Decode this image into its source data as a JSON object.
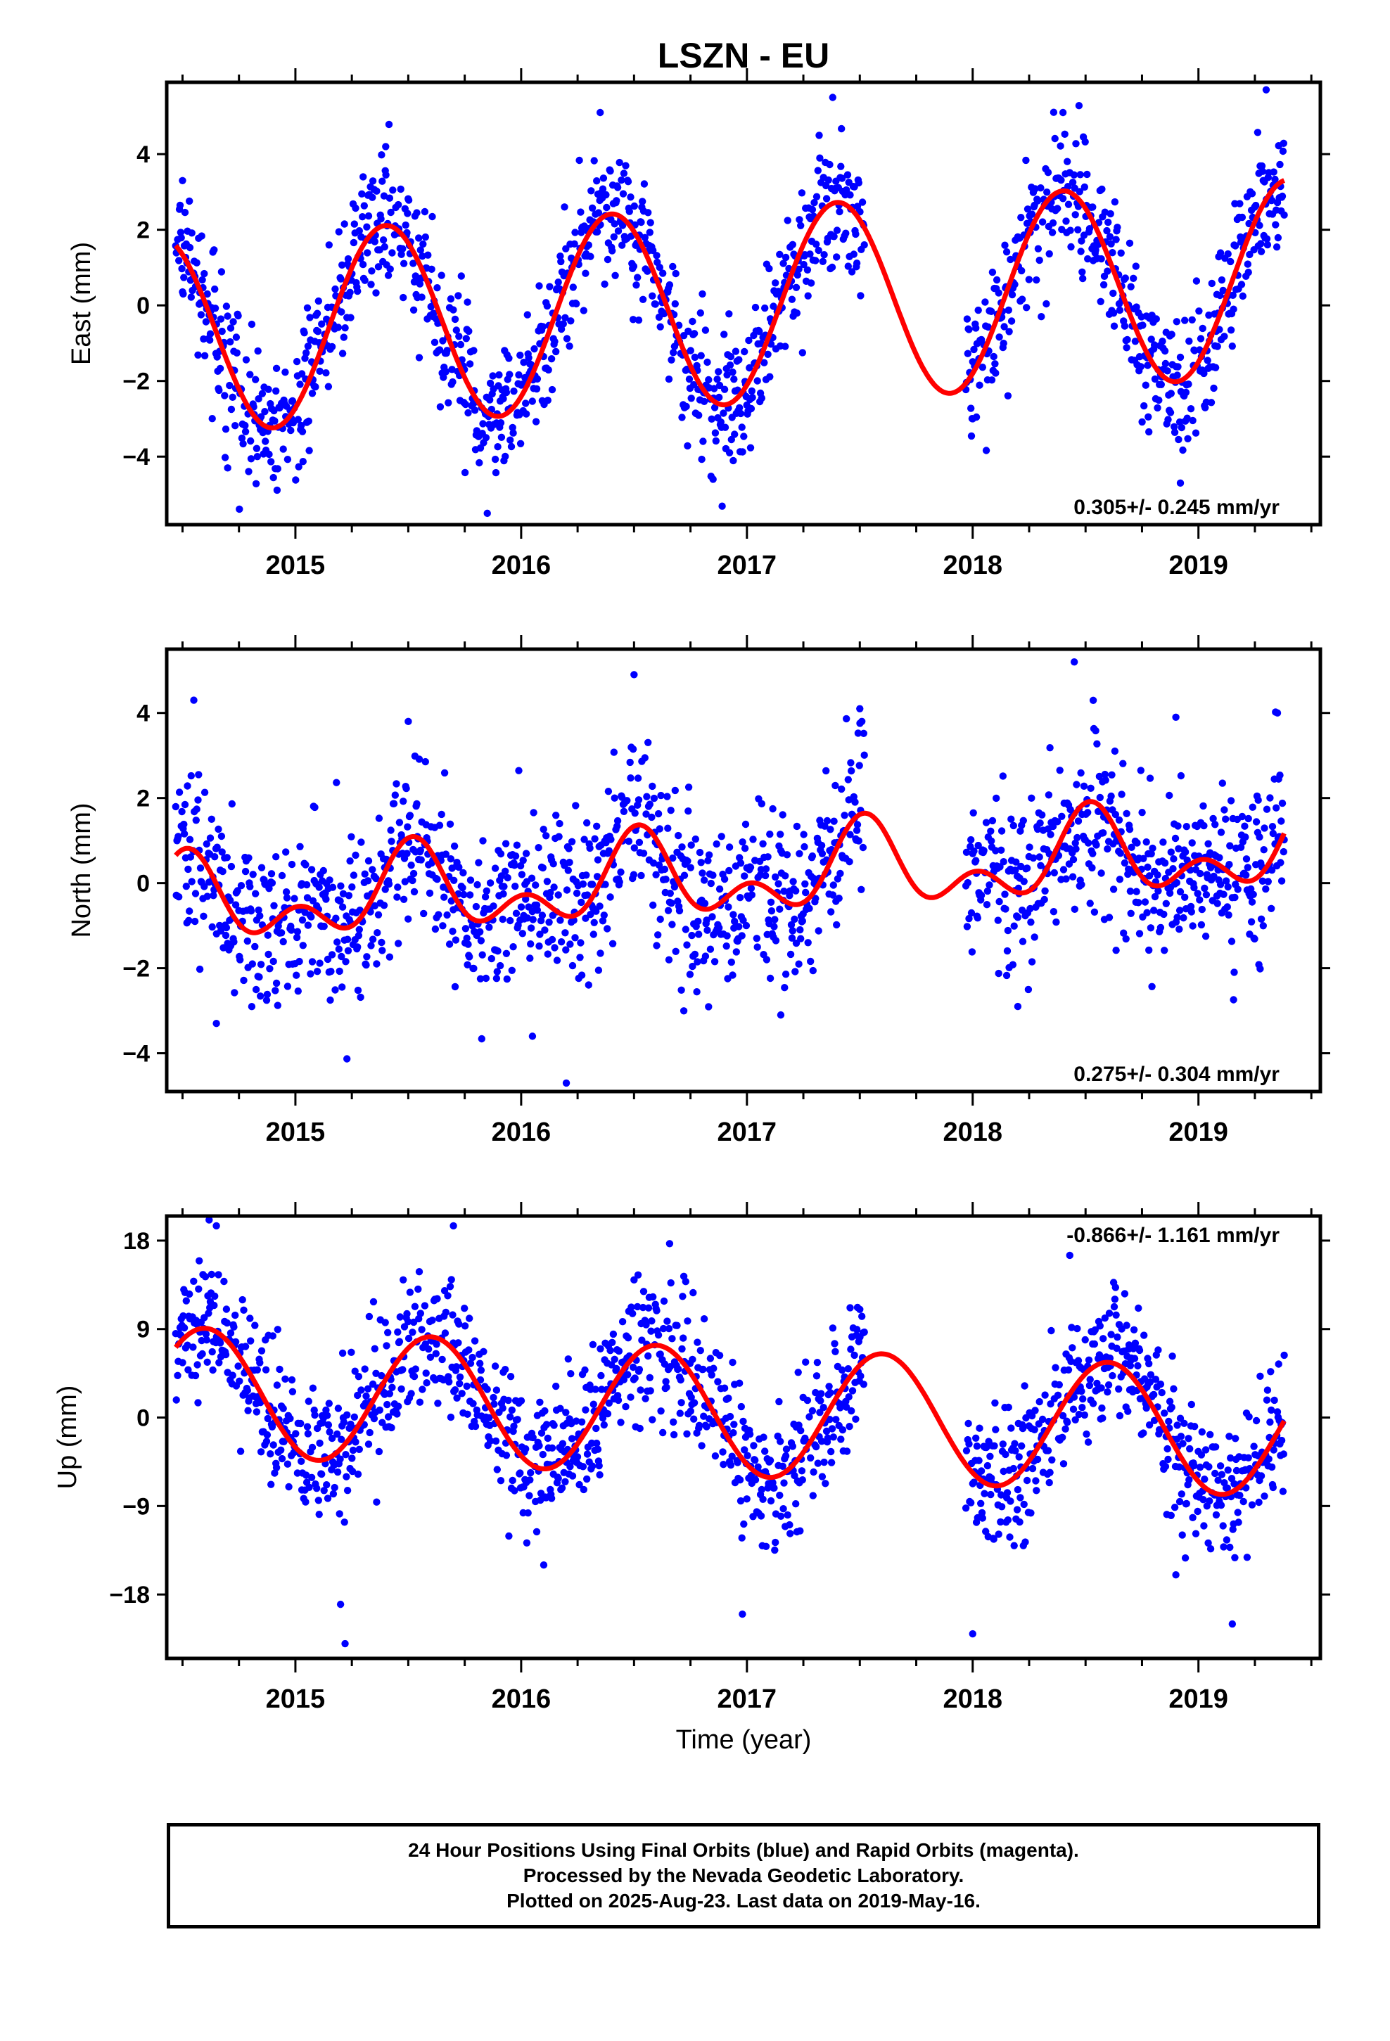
{
  "title": "LSZN - EU",
  "xlabel": "Time (year)",
  "x_tick_labels": [
    "2015",
    "2016",
    "2017",
    "2018",
    "2019"
  ],
  "footer": {
    "line1": "24 Hour Positions Using Final Orbits (blue) and Rapid Orbits (magenta).",
    "line2": "Processed by the Nevada Geodetic Laboratory.",
    "line3": "Plotted on 2025-Aug-23. Last data on 2019-May-16."
  },
  "colors": {
    "points": "#0000ff",
    "model": "#ff0000",
    "axes": "#000000"
  },
  "chart_data": [
    {
      "type": "scatter",
      "ylabel": "East (mm)",
      "rate_label": "0.305+/- 0.245 mm/yr",
      "xlim": [
        2014.43,
        2019.54
      ],
      "ylim": [
        -5.8,
        5.9
      ],
      "y_ticks": [
        -4,
        -2,
        0,
        2,
        4
      ],
      "y_tick_labels": [
        "−4",
        "−2",
        "0",
        "2",
        "4"
      ],
      "fit": {
        "trend_mm_per_yr": 0.305,
        "annual_amp": 2.6,
        "annual_peak": 0.4,
        "semi_amp": 0.0,
        "semi_peak": 0.0,
        "offset": 0.0,
        "ref_year": 2017.0
      },
      "noise_sd": 0.9,
      "observation_spans": [
        [
          2014.47,
          2017.52
        ],
        [
          2017.97,
          2019.38
        ]
      ],
      "series": [
        {
          "name": "24 Hour Positions (final orbits)",
          "color": "#0000ff",
          "sample_points": [
            {
              "x": 2014.5,
              "y": 3.3
            },
            {
              "x": 2014.7,
              "y": -4.3
            },
            {
              "x": 2015.3,
              "y": 3.4
            },
            {
              "x": 2015.4,
              "y": 4.2
            },
            {
              "x": 2015.85,
              "y": -5.5
            },
            {
              "x": 2016.35,
              "y": 5.1
            },
            {
              "x": 2016.85,
              "y": -4.6
            },
            {
              "x": 2017.38,
              "y": 5.5
            },
            {
              "x": 2018.0,
              "y": -3.0
            },
            {
              "x": 2018.4,
              "y": 5.1
            },
            {
              "x": 2018.92,
              "y": -4.7
            },
            {
              "x": 2019.3,
              "y": 5.7
            }
          ]
        }
      ]
    },
    {
      "type": "scatter",
      "ylabel": "North (mm)",
      "rate_label": "0.275+/- 0.304 mm/yr",
      "xlim": [
        2014.43,
        2019.54
      ],
      "ylim": [
        -4.9,
        5.5
      ],
      "y_ticks": [
        -4,
        -2,
        0,
        2,
        4
      ],
      "y_tick_labels": [
        "−4",
        "−2",
        "0",
        "2",
        "4"
      ],
      "fit": {
        "trend_mm_per_yr": 0.275,
        "annual_amp": 0.75,
        "annual_peak": 0.52,
        "semi_amp": 0.6,
        "semi_peak": 0.02,
        "offset": 0.15,
        "ref_year": 2017.0
      },
      "noise_sd": 1.0,
      "observation_spans": [
        [
          2014.47,
          2017.52
        ],
        [
          2017.97,
          2019.38
        ]
      ],
      "series": [
        {
          "name": "24 Hour Positions (final orbits)",
          "color": "#0000ff",
          "sample_points": [
            {
              "x": 2014.55,
              "y": 4.3
            },
            {
              "x": 2014.65,
              "y": -3.3
            },
            {
              "x": 2015.5,
              "y": 3.8
            },
            {
              "x": 2016.05,
              "y": -3.6
            },
            {
              "x": 2016.2,
              "y": -4.7
            },
            {
              "x": 2016.5,
              "y": 4.9
            },
            {
              "x": 2017.15,
              "y": -3.1
            },
            {
              "x": 2017.5,
              "y": 4.1
            },
            {
              "x": 2018.45,
              "y": 5.2
            },
            {
              "x": 2018.2,
              "y": -2.9
            },
            {
              "x": 2018.9,
              "y": 3.9
            },
            {
              "x": 2019.35,
              "y": 4.0
            }
          ]
        }
      ]
    },
    {
      "type": "scatter",
      "ylabel": "Up (mm)",
      "rate_label": "-0.866+/- 1.161 mm/yr",
      "xlim": [
        2014.43,
        2019.54
      ],
      "ylim": [
        -24.5,
        20.5
      ],
      "y_ticks": [
        -18,
        -9,
        0,
        9,
        18
      ],
      "y_tick_labels": [
        "−18",
        "−9",
        "0",
        "9",
        "18"
      ],
      "fit": {
        "trend_mm_per_yr": -0.866,
        "annual_amp": 6.5,
        "annual_peak": 0.6,
        "semi_amp": 0.0,
        "semi_peak": 0.0,
        "offset": 0.5,
        "ref_year": 2017.0
      },
      "noise_sd": 3.6,
      "observation_spans": [
        [
          2014.47,
          2017.52
        ],
        [
          2017.97,
          2019.38
        ]
      ],
      "series": [
        {
          "name": "24 Hour Positions (final orbits)",
          "color": "#0000ff",
          "sample_points": [
            {
              "x": 2014.65,
              "y": 19.5
            },
            {
              "x": 2015.2,
              "y": -19.0
            },
            {
              "x": 2015.22,
              "y": -23.0
            },
            {
              "x": 2015.7,
              "y": 19.5
            },
            {
              "x": 2016.1,
              "y": -15.0
            },
            {
              "x": 2016.5,
              "y": 14.0
            },
            {
              "x": 2016.98,
              "y": -20.0
            },
            {
              "x": 2017.5,
              "y": 11.0
            },
            {
              "x": 2018.0,
              "y": -22.0
            },
            {
              "x": 2018.43,
              "y": 16.5
            },
            {
              "x": 2018.9,
              "y": -16.0
            },
            {
              "x": 2019.15,
              "y": -21.0
            }
          ]
        }
      ]
    }
  ]
}
